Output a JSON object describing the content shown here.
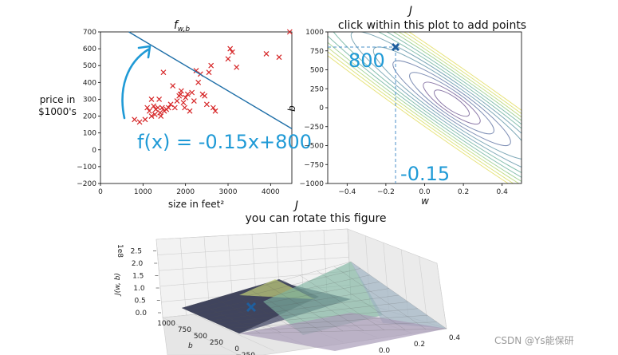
{
  "watermark": "CSDN @Ys能保研",
  "chart_data": [
    {
      "type": "scatter",
      "title": "f_w,b",
      "xlabel": "size in feet²",
      "ylabel": "price in $1000's",
      "xlim": [
        0,
        4500
      ],
      "ylim": [
        -200,
        700
      ],
      "xticks": [
        "0",
        "1000",
        "2000",
        "3000",
        "4000"
      ],
      "yticks": [
        "−200",
        "−100",
        "0",
        "100",
        "200",
        "300",
        "400",
        "500",
        "600",
        "700"
      ],
      "points": [
        [
          800,
          180
        ],
        [
          920,
          165
        ],
        [
          1050,
          180
        ],
        [
          1100,
          250
        ],
        [
          1150,
          230
        ],
        [
          1200,
          300
        ],
        [
          1200,
          200
        ],
        [
          1250,
          260
        ],
        [
          1280,
          210
        ],
        [
          1300,
          240
        ],
        [
          1350,
          250
        ],
        [
          1380,
          300
        ],
        [
          1400,
          220
        ],
        [
          1420,
          200
        ],
        [
          1450,
          250
        ],
        [
          1480,
          460
        ],
        [
          1500,
          230
        ],
        [
          1550,
          240
        ],
        [
          1600,
          250
        ],
        [
          1650,
          270
        ],
        [
          1700,
          380
        ],
        [
          1750,
          250
        ],
        [
          1800,
          290
        ],
        [
          1850,
          320
        ],
        [
          1880,
          330
        ],
        [
          1900,
          350
        ],
        [
          1950,
          280
        ],
        [
          1980,
          250
        ],
        [
          2000,
          310
        ],
        [
          2050,
          330
        ],
        [
          2100,
          230
        ],
        [
          2150,
          340
        ],
        [
          2200,
          290
        ],
        [
          2250,
          470
        ],
        [
          2300,
          400
        ],
        [
          2350,
          450
        ],
        [
          2400,
          330
        ],
        [
          2450,
          320
        ],
        [
          2500,
          270
        ],
        [
          2550,
          460
        ],
        [
          2600,
          500
        ],
        [
          2650,
          250
        ],
        [
          2700,
          230
        ],
        [
          3000,
          540
        ],
        [
          3050,
          600
        ],
        [
          3100,
          580
        ],
        [
          3200,
          490
        ],
        [
          3900,
          570
        ],
        [
          4200,
          550
        ],
        [
          4450,
          700
        ]
      ],
      "line": {
        "w": -0.15,
        "b": 800
      },
      "annotation": "f(x) = -0.15x+800"
    },
    {
      "type": "contour",
      "title": "J",
      "subtitle": "click within this plot to add points",
      "xlabel": "w",
      "ylabel": "b",
      "xlim": [
        -0.5,
        0.5
      ],
      "ylim": [
        -1000,
        1000
      ],
      "xticks": [
        "−0.4",
        "−0.2",
        "0.0",
        "0.2",
        "0.4"
      ],
      "yticks": [
        "−1000",
        "−750",
        "−500",
        "−250",
        "0",
        "250",
        "500",
        "750",
        "1000"
      ],
      "minimum": {
        "w": 0.14,
        "b": 60
      },
      "marker": {
        "w": -0.15,
        "b": 800
      },
      "annotation_w": "-0.15",
      "annotation_b": "800",
      "colors": [
        "#8c79a8",
        "#8c79a8",
        "#7f8fb5",
        "#7f8fb5",
        "#7fa9b8",
        "#7fa9b8",
        "#86bfae",
        "#86bfae",
        "#a6d49b",
        "#c5dd8a",
        "#dde37e",
        "#e7e27a"
      ]
    },
    {
      "type": "surface3d",
      "title": "J",
      "subtitle": "you can rotate this figure",
      "zlabel": "J(w, b)",
      "ylabel": "b",
      "zscale": "1e8",
      "zticks": [
        "0.0",
        "0.5",
        "1.0",
        "1.5",
        "2.0",
        "2.5"
      ],
      "yticks": [
        "1000",
        "750",
        "500",
        "250",
        "0",
        "−250",
        "−500"
      ],
      "xticks": [
        "0.0",
        "0.2",
        "0.4"
      ]
    }
  ]
}
